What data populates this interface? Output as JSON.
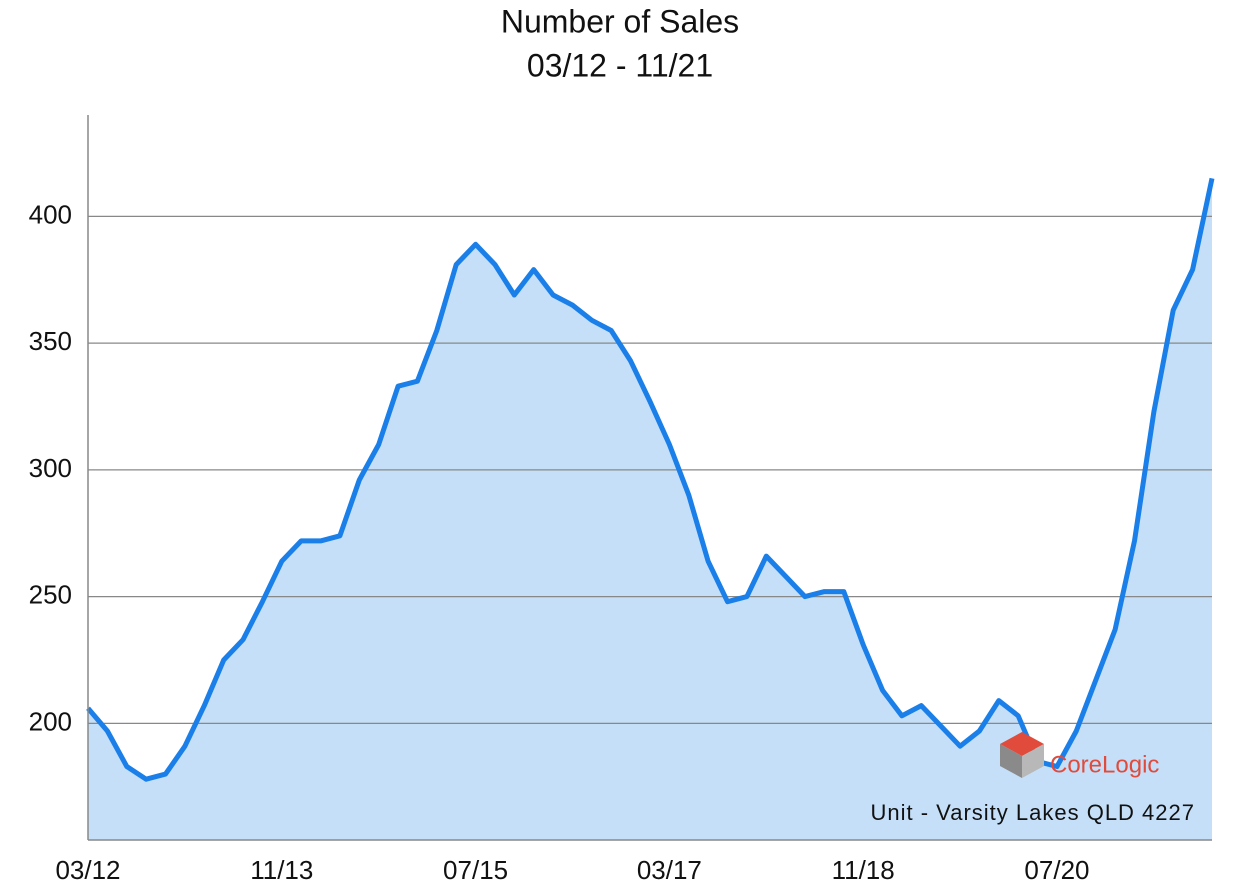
{
  "chart_data": {
    "type": "area",
    "title": "Number of Sales",
    "subtitle": "03/12 - 11/21",
    "categories": [
      "03/12",
      null,
      null,
      null,
      null,
      null,
      null,
      null,
      null,
      null,
      "11/13",
      null,
      null,
      null,
      null,
      null,
      null,
      null,
      null,
      null,
      "07/15",
      null,
      null,
      null,
      null,
      null,
      null,
      null,
      null,
      null,
      "03/17",
      null,
      null,
      null,
      null,
      null,
      null,
      null,
      null,
      null,
      "11/18",
      null,
      null,
      null,
      null,
      null,
      null,
      null,
      null,
      null,
      "07/20",
      null,
      null,
      null,
      null,
      null,
      null,
      null,
      null
    ],
    "values": [
      206,
      197,
      183,
      178,
      180,
      191,
      207,
      225,
      233,
      248,
      264,
      272,
      272,
      274,
      296,
      310,
      333,
      335,
      355,
      381,
      389,
      381,
      369,
      379,
      369,
      365,
      359,
      355,
      343,
      327,
      310,
      290,
      264,
      248,
      250,
      266,
      258,
      250,
      252,
      252,
      231,
      213,
      203,
      207,
      199,
      191,
      197,
      209,
      203,
      185,
      183,
      197,
      217,
      237,
      272,
      323,
      363,
      379,
      415
    ],
    "color": "#1a7fe8",
    "fill": "#c5dff8",
    "ylim": [
      154,
      440
    ],
    "yticks": [
      200,
      250,
      300,
      350,
      400
    ],
    "grid": true,
    "annotations": [
      "Unit - Varsity Lakes QLD 4227",
      "CoreLogic"
    ]
  }
}
